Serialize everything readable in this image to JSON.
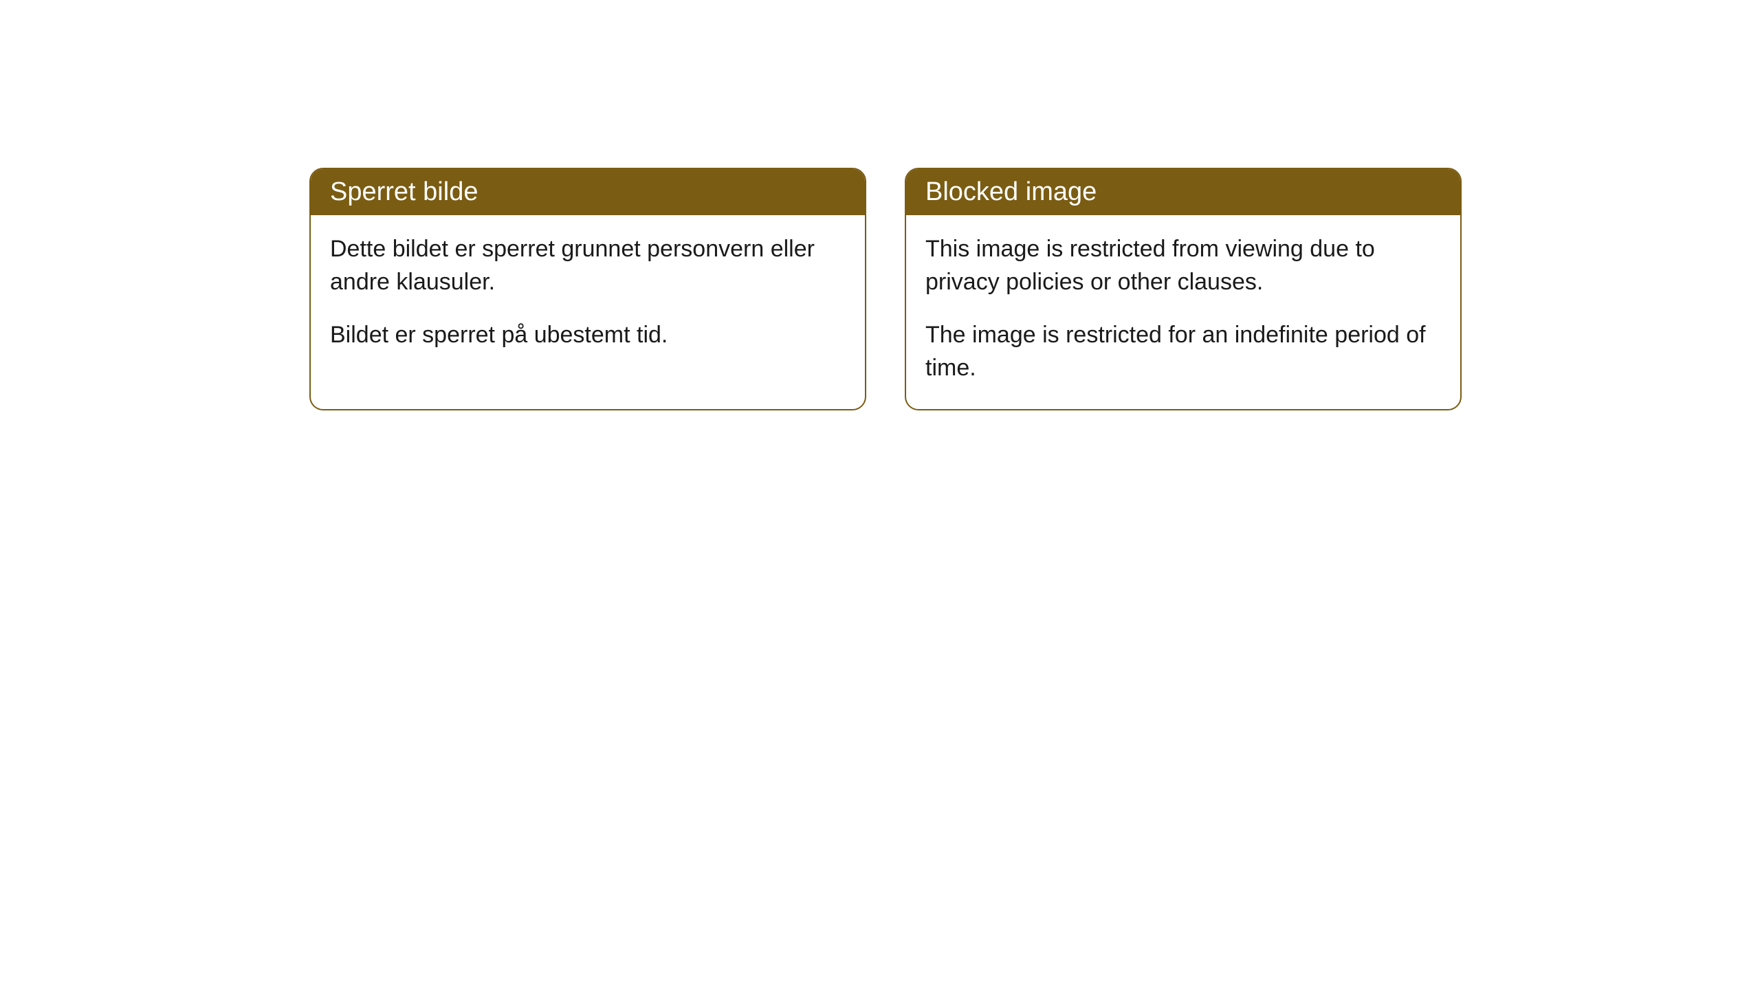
{
  "cards": [
    {
      "title": "Sperret bilde",
      "paragraph1": "Dette bildet er sperret grunnet personvern eller andre klausuler.",
      "paragraph2": "Bildet er sperret på ubestemt tid."
    },
    {
      "title": "Blocked image",
      "paragraph1": "This image is restricted from viewing due to privacy policies or other clauses.",
      "paragraph2": "The image is restricted for an indefinite period of time."
    }
  ],
  "style": {
    "header_background": "#7a5c13",
    "header_text_color": "#ffffff",
    "border_color": "#7a5c13",
    "body_background": "#ffffff",
    "body_text_color": "#1a1a1a",
    "border_radius": 20,
    "title_fontsize": 38,
    "body_fontsize": 34
  }
}
